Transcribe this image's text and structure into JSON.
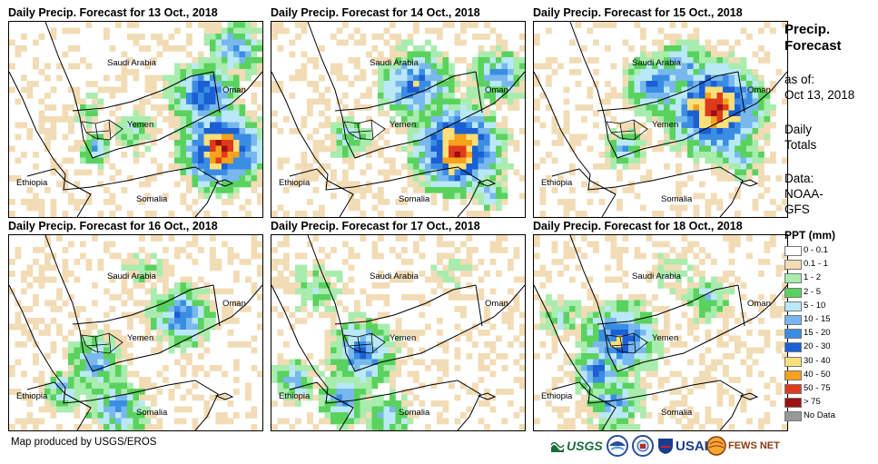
{
  "panels": [
    {
      "title": "Daily Precip. Forecast for 13 Oct., 2018",
      "labels": {
        "saudi": "Saudi Arabia",
        "oman": "Oman",
        "yemen": "Yemen",
        "ethiopia": "Ethiopia",
        "somalia": "Somalia"
      }
    },
    {
      "title": "Daily Precip. Forecast for 14 Oct., 2018",
      "labels": {
        "saudi": "Saudi Arabia",
        "oman": "Oman",
        "yemen": "Yemen",
        "ethiopia": "Ethiopia",
        "somalia": "Somalia"
      }
    },
    {
      "title": "Daily Precip. Forecast for 15 Oct., 2018",
      "labels": {
        "saudi": "Saudi Arabia",
        "oman": "Oman",
        "yemen": "Yemen",
        "ethiopia": "Ethiopia",
        "somalia": "Somalia"
      }
    },
    {
      "title": "Daily Precip. Forecast for 16 Oct., 2018",
      "labels": {
        "saudi": "Saudi Arabia",
        "oman": "Oman",
        "yemen": "Yemen",
        "ethiopia": "Ethiopia",
        "somalia": "Somalia"
      }
    },
    {
      "title": "Daily Precip. Forecast for 17 Oct., 2018",
      "labels": {
        "saudi": "Saudi Arabia",
        "oman": "Oman",
        "yemen": "Yemen",
        "ethiopia": "Ethiopia",
        "somalia": "Somalia"
      }
    },
    {
      "title": "Daily Precip. Forecast for 18 Oct., 2018",
      "labels": {
        "saudi": "Saudi Arabia",
        "oman": "Oman",
        "yemen": "Yemen",
        "ethiopia": "Ethiopia",
        "somalia": "Somalia"
      }
    }
  ],
  "sidebar": {
    "heading_line1": "Precip.",
    "heading_line2": "Forecast",
    "asof_label": "as of:",
    "asof_date": "Oct 13, 2018",
    "totals_line1": "Daily",
    "totals_line2": "Totals",
    "data_label": "Data:",
    "data_line1": "NOAA-",
    "data_line2": "GFS"
  },
  "legend": {
    "title": "PPT (mm)",
    "items": [
      {
        "label": "0 - 0.1",
        "color": "#ffffff"
      },
      {
        "label": "0.1 - 1",
        "color": "#f2dcb6"
      },
      {
        "label": "1 - 2",
        "color": "#a8ecae"
      },
      {
        "label": "2 - 5",
        "color": "#5ad25e"
      },
      {
        "label": "5 - 10",
        "color": "#b9e8f7"
      },
      {
        "label": "10 - 15",
        "color": "#78b8ee"
      },
      {
        "label": "15 - 20",
        "color": "#3b8de3"
      },
      {
        "label": "20 - 30",
        "color": "#1b5fd4"
      },
      {
        "label": "30 - 40",
        "color": "#fbe07a"
      },
      {
        "label": "40 - 50",
        "color": "#f6a21a"
      },
      {
        "label": "50 - 75",
        "color": "#e03a1e"
      },
      {
        "label": "> 75",
        "color": "#9c1010"
      },
      {
        "label": "No Data",
        "color": "#999999"
      }
    ]
  },
  "footer": {
    "credit": "Map produced by USGS/EROS"
  },
  "logos": {
    "usgs": "USGS",
    "usaid": "USAID",
    "fews": "FEWS NET"
  },
  "colors": {
    "border": "#000000",
    "coast": "#000000"
  }
}
